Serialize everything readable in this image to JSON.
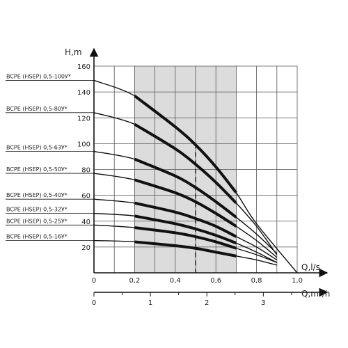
{
  "chart_data": {
    "type": "line",
    "title": "",
    "xlabel": "Q,l/s",
    "x2label": "Q,m³/h",
    "ylabel": "H,m",
    "xlim": [
      0,
      1.0
    ],
    "ylim": [
      0,
      160
    ],
    "x_ticks": [
      "0",
      "0,2",
      "0,4",
      "0,6",
      "0,8",
      "1,0"
    ],
    "x2_ticks": [
      "0",
      "1",
      "2",
      "3"
    ],
    "y_ticks": [
      "20",
      "40",
      "60",
      "80",
      "100",
      "120",
      "140",
      "160"
    ],
    "grid": true,
    "operating_range": [
      0.2,
      0.7
    ],
    "nominal_flow": 0.5,
    "series": [
      {
        "name": "BCPE (HSEP) 0,5-100У*",
        "x": [
          0,
          0.2,
          0.4,
          0.5,
          0.6,
          0.7,
          0.8,
          1.0
        ],
        "y": [
          149,
          137,
          113,
          99,
          82,
          62,
          38,
          0
        ]
      },
      {
        "name": "BCPE (HSEP) 0,5-80У*",
        "x": [
          0,
          0.2,
          0.4,
          0.5,
          0.6,
          0.7,
          0.8,
          0.9
        ],
        "y": [
          124,
          115,
          96,
          84,
          70,
          54,
          36,
          14
        ]
      },
      {
        "name": "BCPE (HSEP) 0,5-63У*",
        "x": [
          0,
          0.2,
          0.4,
          0.5,
          0.6,
          0.7,
          0.8,
          0.9
        ],
        "y": [
          94,
          88,
          75,
          66,
          55,
          43,
          30,
          15
        ]
      },
      {
        "name": "BCPE (HSEP) 0,5-50У*",
        "x": [
          0,
          0.2,
          0.4,
          0.5,
          0.6,
          0.7,
          0.8,
          0.9
        ],
        "y": [
          77,
          72,
          62,
          55,
          46,
          36,
          25,
          12
        ]
      },
      {
        "name": "BCPE (HSEP) 0,5-40У*",
        "x": [
          0,
          0.2,
          0.4,
          0.5,
          0.6,
          0.7,
          0.8,
          0.9
        ],
        "y": [
          57,
          54,
          47,
          42,
          36,
          28,
          20,
          10
        ]
      },
      {
        "name": "BCPE (HSEP) 0,5-32У*",
        "x": [
          0,
          0.2,
          0.4,
          0.5,
          0.6,
          0.7,
          0.8,
          0.9
        ],
        "y": [
          46,
          44,
          38,
          34,
          29,
          23,
          16,
          8
        ]
      },
      {
        "name": "BCPE (HSEP) 0,5-25У*",
        "x": [
          0,
          0.2,
          0.4,
          0.5,
          0.6,
          0.7,
          0.8,
          0.9
        ],
        "y": [
          37,
          35,
          31,
          28,
          24,
          19,
          14,
          8
        ]
      },
      {
        "name": "BCPE (HSEP) 0,5-16У*",
        "x": [
          0,
          0.2,
          0.4,
          0.5,
          0.6,
          0.7,
          0.8,
          0.9
        ],
        "y": [
          25,
          24,
          21,
          19,
          16,
          13,
          10,
          6
        ]
      }
    ]
  }
}
